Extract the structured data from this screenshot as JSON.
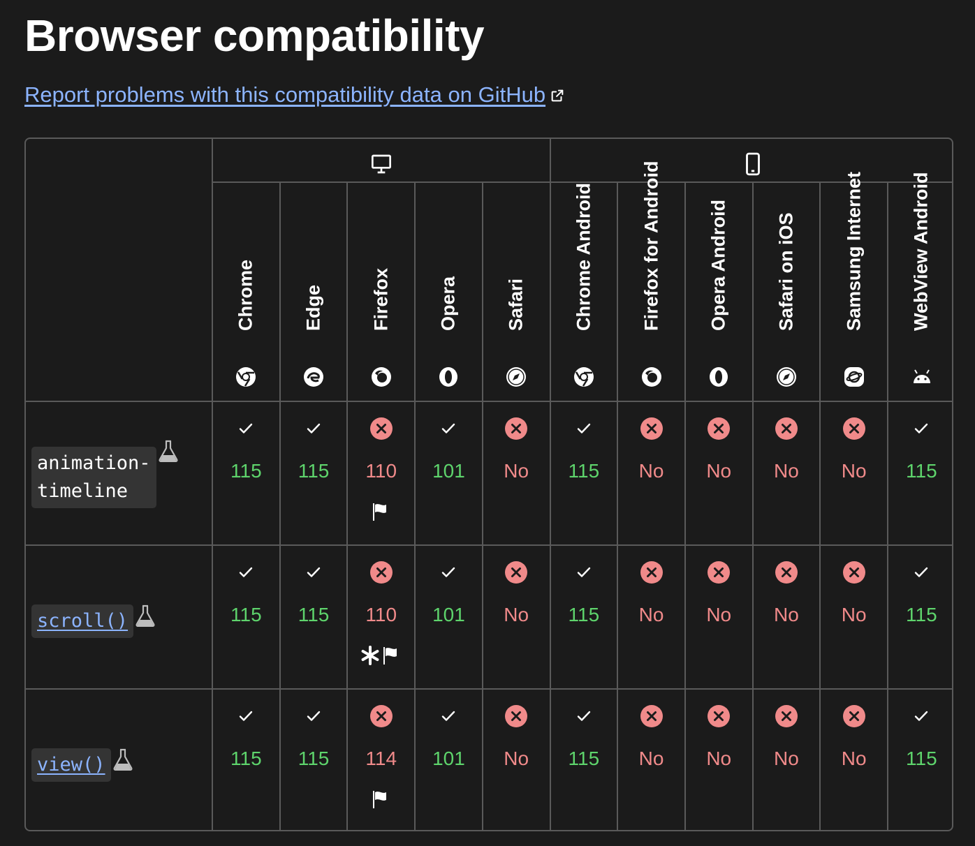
{
  "page": {
    "title": "Browser compatibility",
    "report_link": "Report problems with this compatibility data on GitHub"
  },
  "colors": {
    "background": "#1b1b1b",
    "link": "#8cb4ff",
    "supported": "#5ed46c",
    "unsupported": "#f08a8a",
    "border": "#5a5a5a"
  },
  "platforms": [
    {
      "name": "desktop",
      "icon": "desktop-icon"
    },
    {
      "name": "mobile",
      "icon": "mobile-icon"
    }
  ],
  "browsers": [
    {
      "name": "Chrome",
      "icon": "chrome-icon"
    },
    {
      "name": "Edge",
      "icon": "edge-icon"
    },
    {
      "name": "Firefox",
      "icon": "firefox-icon"
    },
    {
      "name": "Opera",
      "icon": "opera-icon"
    },
    {
      "name": "Safari",
      "icon": "safari-icon"
    },
    {
      "name": "Chrome Android",
      "icon": "chrome-icon"
    },
    {
      "name": "Firefox for Android",
      "icon": "firefox-icon"
    },
    {
      "name": "Opera Android",
      "icon": "opera-icon"
    },
    {
      "name": "Safari on iOS",
      "icon": "safari-icon"
    },
    {
      "name": "Samsung Internet",
      "icon": "samsung-internet-icon"
    },
    {
      "name": "WebView Android",
      "icon": "android-icon"
    }
  ],
  "features": [
    {
      "name": "animation-timeline",
      "name_lines": [
        "animation-",
        "timeline"
      ],
      "is_link": false,
      "experimental": true,
      "support": [
        {
          "supported": true,
          "label": "115",
          "notes": []
        },
        {
          "supported": true,
          "label": "115",
          "notes": []
        },
        {
          "supported": false,
          "label": "110",
          "notes": [
            "flag"
          ]
        },
        {
          "supported": true,
          "label": "101",
          "notes": []
        },
        {
          "supported": false,
          "label": "No",
          "notes": []
        },
        {
          "supported": true,
          "label": "115",
          "notes": []
        },
        {
          "supported": false,
          "label": "No",
          "notes": []
        },
        {
          "supported": false,
          "label": "No",
          "notes": []
        },
        {
          "supported": false,
          "label": "No",
          "notes": []
        },
        {
          "supported": false,
          "label": "No",
          "notes": []
        },
        {
          "supported": true,
          "label": "115",
          "notes": []
        }
      ]
    },
    {
      "name": "scroll()",
      "name_lines": [
        "scroll()"
      ],
      "is_link": true,
      "experimental": true,
      "support": [
        {
          "supported": true,
          "label": "115",
          "notes": []
        },
        {
          "supported": true,
          "label": "115",
          "notes": []
        },
        {
          "supported": false,
          "label": "110",
          "notes": [
            "asterisk",
            "flag"
          ]
        },
        {
          "supported": true,
          "label": "101",
          "notes": []
        },
        {
          "supported": false,
          "label": "No",
          "notes": []
        },
        {
          "supported": true,
          "label": "115",
          "notes": []
        },
        {
          "supported": false,
          "label": "No",
          "notes": []
        },
        {
          "supported": false,
          "label": "No",
          "notes": []
        },
        {
          "supported": false,
          "label": "No",
          "notes": []
        },
        {
          "supported": false,
          "label": "No",
          "notes": []
        },
        {
          "supported": true,
          "label": "115",
          "notes": []
        }
      ]
    },
    {
      "name": "view()",
      "name_lines": [
        "view()"
      ],
      "is_link": true,
      "experimental": true,
      "support": [
        {
          "supported": true,
          "label": "115",
          "notes": []
        },
        {
          "supported": true,
          "label": "115",
          "notes": []
        },
        {
          "supported": false,
          "label": "114",
          "notes": [
            "flag"
          ]
        },
        {
          "supported": true,
          "label": "101",
          "notes": []
        },
        {
          "supported": false,
          "label": "No",
          "notes": []
        },
        {
          "supported": true,
          "label": "115",
          "notes": []
        },
        {
          "supported": false,
          "label": "No",
          "notes": []
        },
        {
          "supported": false,
          "label": "No",
          "notes": []
        },
        {
          "supported": false,
          "label": "No",
          "notes": []
        },
        {
          "supported": false,
          "label": "No",
          "notes": []
        },
        {
          "supported": true,
          "label": "115",
          "notes": []
        }
      ]
    }
  ]
}
